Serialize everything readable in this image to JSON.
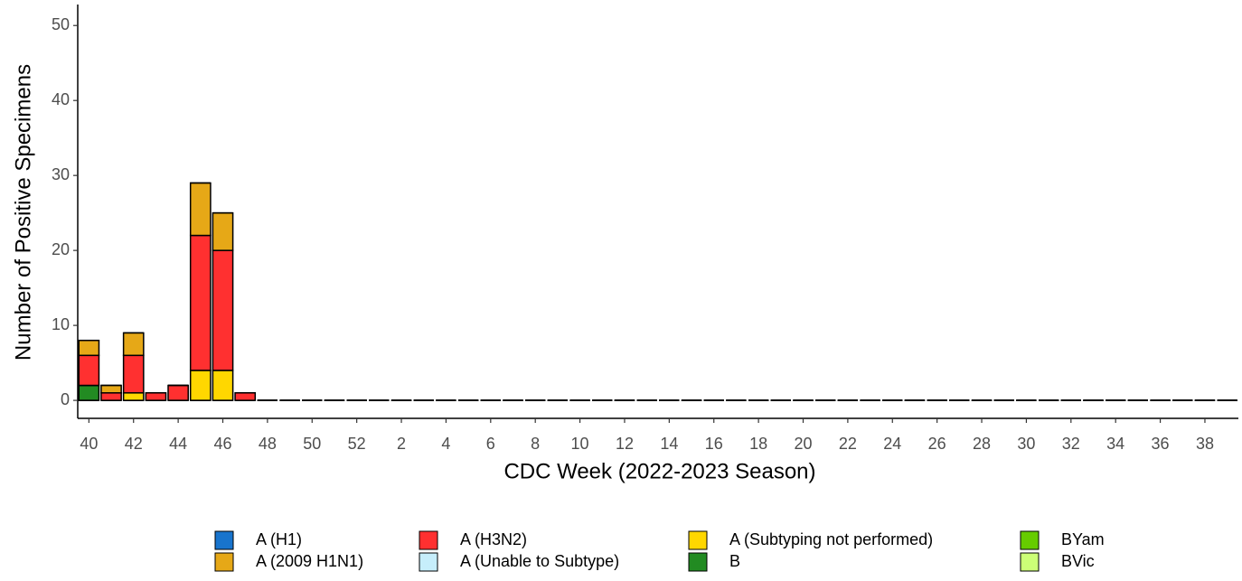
{
  "chart_data": {
    "type": "stacked-bar",
    "y_label": "Number of Positive Specimens",
    "x_label": "CDC Week (2022-2023 Season)",
    "categories": [
      "40",
      null,
      "42",
      null,
      "44",
      null,
      "46",
      null,
      "48",
      null,
      "50",
      null,
      "52",
      null,
      "2",
      null,
      "4",
      null,
      "6",
      null,
      "8",
      null,
      "10",
      null,
      "12",
      null,
      "14",
      null,
      "16",
      null,
      "18",
      null,
      "20",
      null,
      "22",
      null,
      "24",
      null,
      "26",
      null,
      "28",
      null,
      "30",
      null,
      "32",
      null,
      "34",
      null,
      "36",
      null,
      "38",
      null
    ],
    "ylim": [
      -2.4,
      52.8
    ],
    "yticks": [
      0,
      10,
      20,
      30,
      40,
      50
    ],
    "series": [
      {
        "name": "A (H1)",
        "color": "#1874cd",
        "values": [
          0,
          0,
          0,
          0,
          0,
          0,
          0,
          0,
          0,
          0,
          0,
          0,
          0,
          0,
          0,
          0,
          0,
          0,
          0,
          0,
          0,
          0,
          0,
          0,
          0,
          0,
          0,
          0,
          0,
          0,
          0,
          0,
          0,
          0,
          0,
          0,
          0,
          0,
          0,
          0,
          0,
          0,
          0,
          0,
          0,
          0,
          0,
          0,
          0,
          0,
          0,
          0
        ]
      },
      {
        "name": "A (2009 H1N1)",
        "color": "#e6a817",
        "values": [
          2,
          1,
          3,
          0,
          0,
          7,
          5,
          0,
          0,
          0,
          0,
          0,
          0,
          0,
          0,
          0,
          0,
          0,
          0,
          0,
          0,
          0,
          0,
          0,
          0,
          0,
          0,
          0,
          0,
          0,
          0,
          0,
          0,
          0,
          0,
          0,
          0,
          0,
          0,
          0,
          0,
          0,
          0,
          0,
          0,
          0,
          0,
          0,
          0,
          0,
          0,
          0
        ]
      },
      {
        "name": "A (H3N2)",
        "color": "#ff3030",
        "values": [
          4,
          1,
          5,
          1,
          2,
          18,
          16,
          1,
          0,
          0,
          0,
          0,
          0,
          0,
          0,
          0,
          0,
          0,
          0,
          0,
          0,
          0,
          0,
          0,
          0,
          0,
          0,
          0,
          0,
          0,
          0,
          0,
          0,
          0,
          0,
          0,
          0,
          0,
          0,
          0,
          0,
          0,
          0,
          0,
          0,
          0,
          0,
          0,
          0,
          0,
          0,
          0
        ]
      },
      {
        "name": "A (Unable to Subtype)",
        "color": "#c6eefb",
        "values": [
          0,
          0,
          0,
          0,
          0,
          0,
          0,
          0,
          0,
          0,
          0,
          0,
          0,
          0,
          0,
          0,
          0,
          0,
          0,
          0,
          0,
          0,
          0,
          0,
          0,
          0,
          0,
          0,
          0,
          0,
          0,
          0,
          0,
          0,
          0,
          0,
          0,
          0,
          0,
          0,
          0,
          0,
          0,
          0,
          0,
          0,
          0,
          0,
          0,
          0,
          0,
          0
        ]
      },
      {
        "name": "A (Subtyping not performed)",
        "color": "#ffd700",
        "values": [
          0,
          0,
          1,
          0,
          0,
          4,
          4,
          0,
          0,
          0,
          0,
          0,
          0,
          0,
          0,
          0,
          0,
          0,
          0,
          0,
          0,
          0,
          0,
          0,
          0,
          0,
          0,
          0,
          0,
          0,
          0,
          0,
          0,
          0,
          0,
          0,
          0,
          0,
          0,
          0,
          0,
          0,
          0,
          0,
          0,
          0,
          0,
          0,
          0,
          0,
          0,
          0
        ]
      },
      {
        "name": "B",
        "color": "#228b22",
        "values": [
          2,
          0,
          0,
          0,
          0,
          0,
          0,
          0,
          0,
          0,
          0,
          0,
          0,
          0,
          0,
          0,
          0,
          0,
          0,
          0,
          0,
          0,
          0,
          0,
          0,
          0,
          0,
          0,
          0,
          0,
          0,
          0,
          0,
          0,
          0,
          0,
          0,
          0,
          0,
          0,
          0,
          0,
          0,
          0,
          0,
          0,
          0,
          0,
          0,
          0,
          0,
          0
        ]
      },
      {
        "name": "BYam",
        "color": "#66cc00",
        "values": [
          0,
          0,
          0,
          0,
          0,
          0,
          0,
          0,
          0,
          0,
          0,
          0,
          0,
          0,
          0,
          0,
          0,
          0,
          0,
          0,
          0,
          0,
          0,
          0,
          0,
          0,
          0,
          0,
          0,
          0,
          0,
          0,
          0,
          0,
          0,
          0,
          0,
          0,
          0,
          0,
          0,
          0,
          0,
          0,
          0,
          0,
          0,
          0,
          0,
          0,
          0,
          0
        ]
      },
      {
        "name": "BVic",
        "color": "#ccff77",
        "values": [
          0,
          0,
          0,
          0,
          0,
          0,
          0,
          0,
          0,
          0,
          0,
          0,
          0,
          0,
          0,
          0,
          0,
          0,
          0,
          0,
          0,
          0,
          0,
          0,
          0,
          0,
          0,
          0,
          0,
          0,
          0,
          0,
          0,
          0,
          0,
          0,
          0,
          0,
          0,
          0,
          0,
          0,
          0,
          0,
          0,
          0,
          0,
          0,
          0,
          0,
          0,
          0
        ]
      }
    ]
  }
}
